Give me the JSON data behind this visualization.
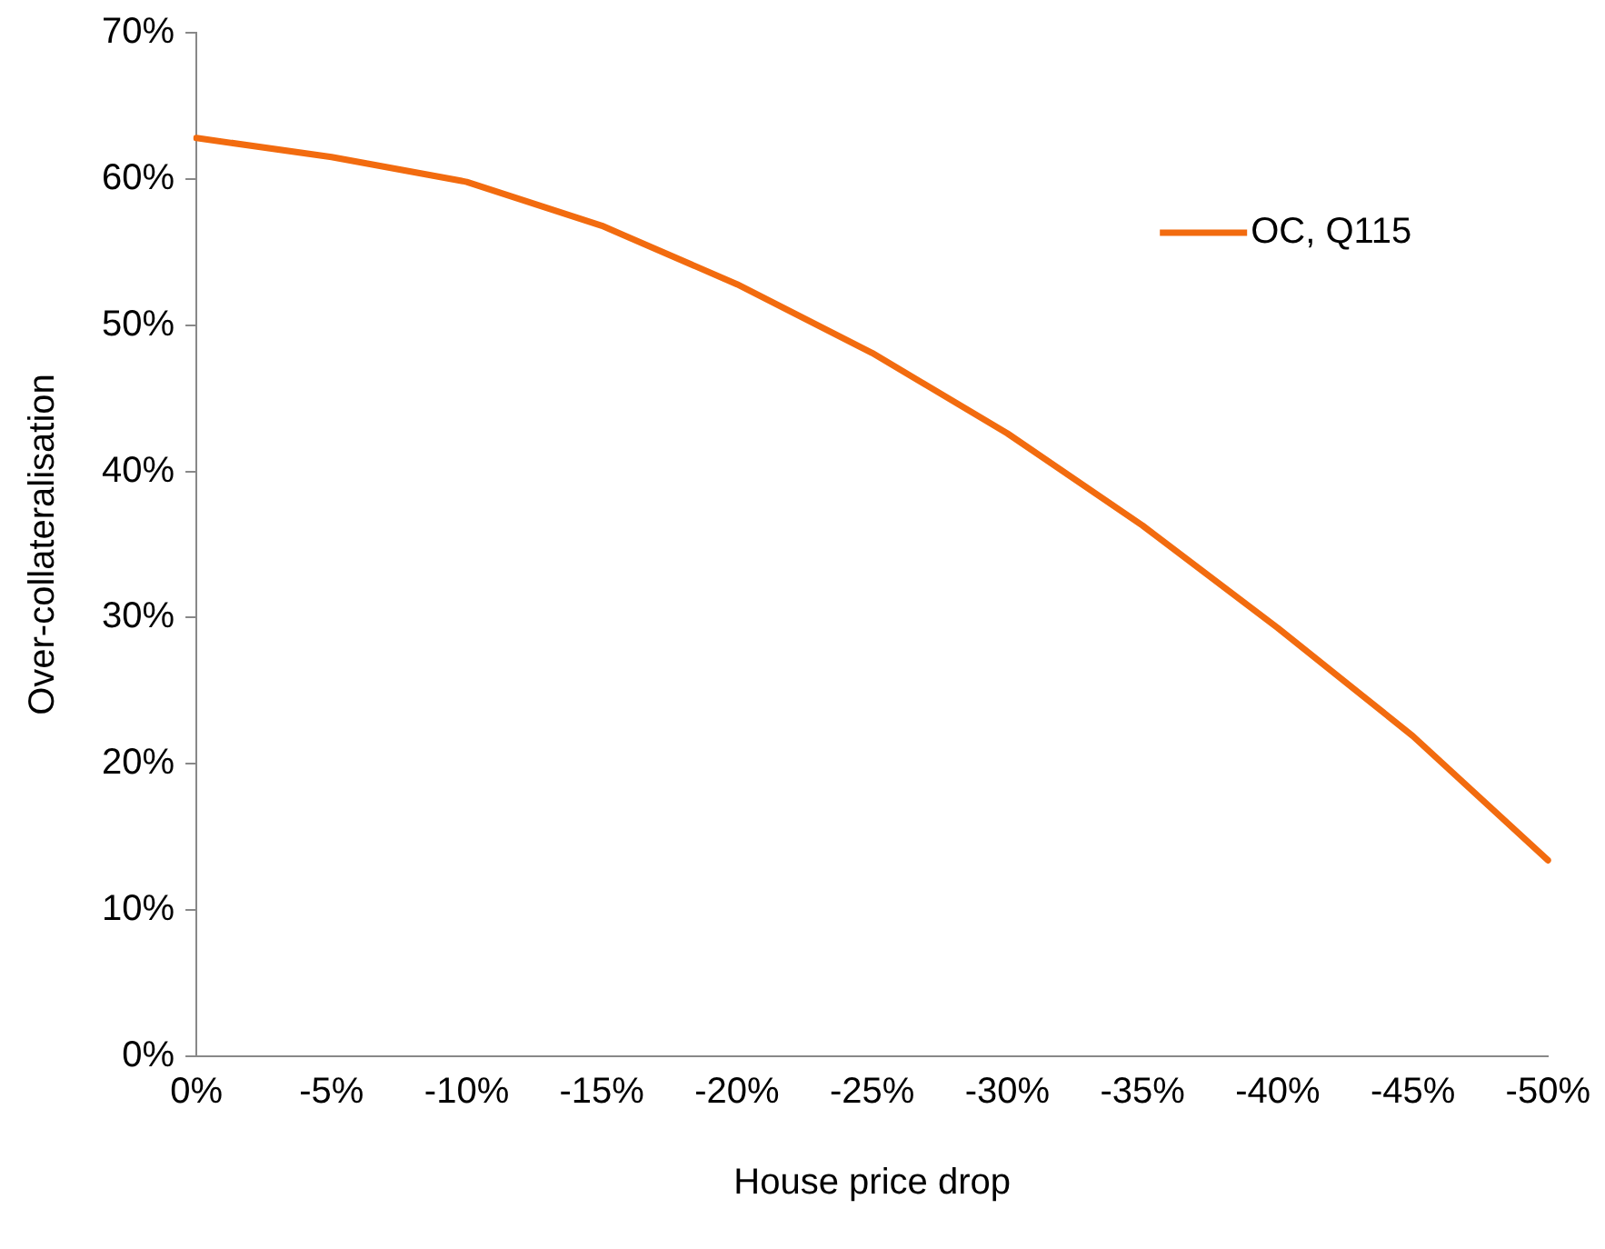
{
  "chart_data": {
    "type": "line",
    "xlabel": "House price drop",
    "ylabel": "Over-collateralisation",
    "categories": [
      "0%",
      "-5%",
      "-10%",
      "-15%",
      "-20%",
      "-25%",
      "-30%",
      "-35%",
      "-40%",
      "-45%",
      "-50%"
    ],
    "series": [
      {
        "name": "OC, Q115",
        "color": "#f26b0f",
        "values": [
          62.8,
          61.5,
          59.8,
          56.8,
          52.8,
          48.1,
          42.6,
          36.3,
          29.3,
          21.9,
          13.4
        ]
      }
    ],
    "ylim": [
      0,
      70
    ],
    "yticks": [
      {
        "value": 0,
        "label": "0%"
      },
      {
        "value": 10,
        "label": "10%"
      },
      {
        "value": 20,
        "label": "20%"
      },
      {
        "value": 30,
        "label": "30%"
      },
      {
        "value": 40,
        "label": "40%"
      },
      {
        "value": 50,
        "label": "50%"
      },
      {
        "value": 60,
        "label": "60%"
      },
      {
        "value": 70,
        "label": "70%"
      }
    ],
    "grid": false,
    "legend": "top right",
    "marker": "none",
    "line_style": "solid"
  }
}
